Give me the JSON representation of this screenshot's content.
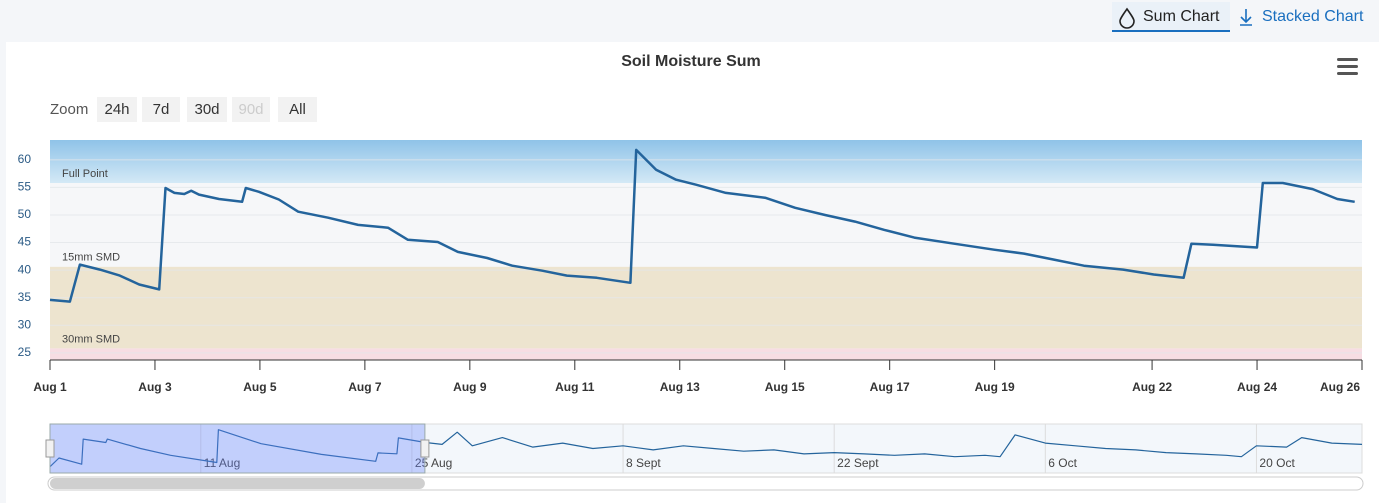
{
  "ui": {
    "tabs": [
      "Sum Chart",
      "Stacked Chart"
    ],
    "zoom_label": "Zoom",
    "zoom_buttons": [
      "24h",
      "7d",
      "30d",
      "90d",
      "All"
    ],
    "zoom_disabled_index": 3
  },
  "chart_data": {
    "type": "line",
    "title": "Soil Moisture Sum",
    "x": [
      1,
      1.38,
      1.57,
      1.95,
      2.33,
      2.7,
      3.08,
      3.2,
      3.37,
      3.56,
      3.69,
      3.84,
      4.22,
      4.66,
      4.73,
      4.98,
      5.36,
      5.73,
      6.3,
      6.87,
      7.44,
      7.82,
      8.39,
      8.77,
      9.33,
      9.81,
      10.38,
      10.85,
      11.42,
      12.06,
      12.17,
      12.55,
      12.93,
      13.31,
      13.88,
      14.64,
      15.2,
      15.77,
      16.34,
      16.9,
      17.47,
      18.23,
      18.99,
      19.56,
      20.13,
      20.7,
      21.45,
      22.03,
      22.6,
      22.75,
      23.16,
      24.0,
      24.11,
      24.49,
      25.06,
      25.53,
      25.86
    ],
    "series": [
      {
        "color": "#24649c",
        "values": [
          34.6,
          34.3,
          41.0,
          40.1,
          39.0,
          37.4,
          36.5,
          54.9,
          54.0,
          53.8,
          54.4,
          53.7,
          52.9,
          52.4,
          54.9,
          54.2,
          52.8,
          50.6,
          49.5,
          48.2,
          47.7,
          45.5,
          45.1,
          43.3,
          42.2,
          40.8,
          39.9,
          39.0,
          38.6,
          37.7,
          61.8,
          58.2,
          56.4,
          55.5,
          54.0,
          53.1,
          51.3,
          50.0,
          48.8,
          47.3,
          45.9,
          44.8,
          43.7,
          43.0,
          41.9,
          40.8,
          40.1,
          39.2,
          38.6,
          44.8,
          44.6,
          44.1,
          55.8,
          55.8,
          54.7,
          52.9,
          52.4
        ]
      }
    ],
    "xlim": [
      1,
      26
    ],
    "xticks": [
      {
        "value": 1,
        "label": "Aug 1"
      },
      {
        "value": 3,
        "label": "Aug 3"
      },
      {
        "value": 5,
        "label": "Aug 5"
      },
      {
        "value": 7,
        "label": "Aug 7"
      },
      {
        "value": 9,
        "label": "Aug 9"
      },
      {
        "value": 11,
        "label": "Aug 11"
      },
      {
        "value": 13,
        "label": "Aug 13"
      },
      {
        "value": 15,
        "label": "Aug 15"
      },
      {
        "value": 17,
        "label": "Aug 17"
      },
      {
        "value": 19,
        "label": "Aug 19"
      },
      {
        "value": 22,
        "label": "Aug 22"
      },
      {
        "value": 24,
        "label": "Aug 24"
      },
      {
        "value": 26,
        "label": "Aug 26"
      }
    ],
    "ylim": [
      23.7,
      63.6
    ],
    "yticks": [
      25,
      30,
      35,
      40,
      45,
      50,
      55,
      60
    ],
    "grid": true,
    "plot_bands": [
      {
        "label": "Full Point",
        "from": 55.8,
        "to": 63.6,
        "color": "#a9d2ee"
      },
      {
        "label": "15mm SMD",
        "from": 40.6,
        "to": 55.8,
        "color": "#f6f7f9"
      },
      {
        "label": "30mm SMD",
        "from": 25.8,
        "to": 40.6,
        "color": "#ede4cf"
      },
      {
        "from": 23.7,
        "to": 25.8,
        "color": "#f7dde3"
      }
    ],
    "navigator": {
      "x": [
        1,
        1.6,
        3.1,
        3.2,
        4.7,
        4.8,
        7,
        9,
        12.06,
        12.17,
        15,
        19,
        22.6,
        22.75,
        24,
        24.1,
        25.9,
        27,
        28,
        29,
        31,
        33,
        35,
        37,
        39,
        41,
        43,
        45,
        47,
        49,
        51,
        53,
        55,
        57,
        59,
        61,
        63,
        64,
        65,
        67,
        69,
        71,
        73,
        75,
        77,
        79,
        80,
        81,
        83,
        84,
        86,
        88
      ],
      "values": [
        34.6,
        41,
        36.5,
        54.9,
        52.4,
        54.9,
        48,
        43,
        37.7,
        61.8,
        51.5,
        43.7,
        38.6,
        44.8,
        44.1,
        55.8,
        52.4,
        51,
        60,
        50,
        56,
        49,
        52,
        48,
        50,
        47,
        50,
        48,
        46,
        47,
        44,
        45,
        44,
        43,
        44,
        42,
        43,
        42,
        58,
        52,
        50,
        48,
        47,
        45,
        44,
        43,
        42,
        50,
        49,
        56,
        52,
        51
      ],
      "color": "#24649c",
      "xlim": [
        1,
        88
      ],
      "ylim": [
        30,
        66
      ],
      "xticks": [
        {
          "value": 11,
          "label": "11 Aug"
        },
        {
          "value": 25,
          "label": "25 Aug"
        },
        {
          "value": 39,
          "label": "8 Sept"
        },
        {
          "value": 53,
          "label": "22 Sept"
        },
        {
          "value": 67,
          "label": "6 Oct"
        },
        {
          "value": 81,
          "label": "20 Oct"
        }
      ],
      "selection": [
        1,
        25.86
      ]
    }
  }
}
